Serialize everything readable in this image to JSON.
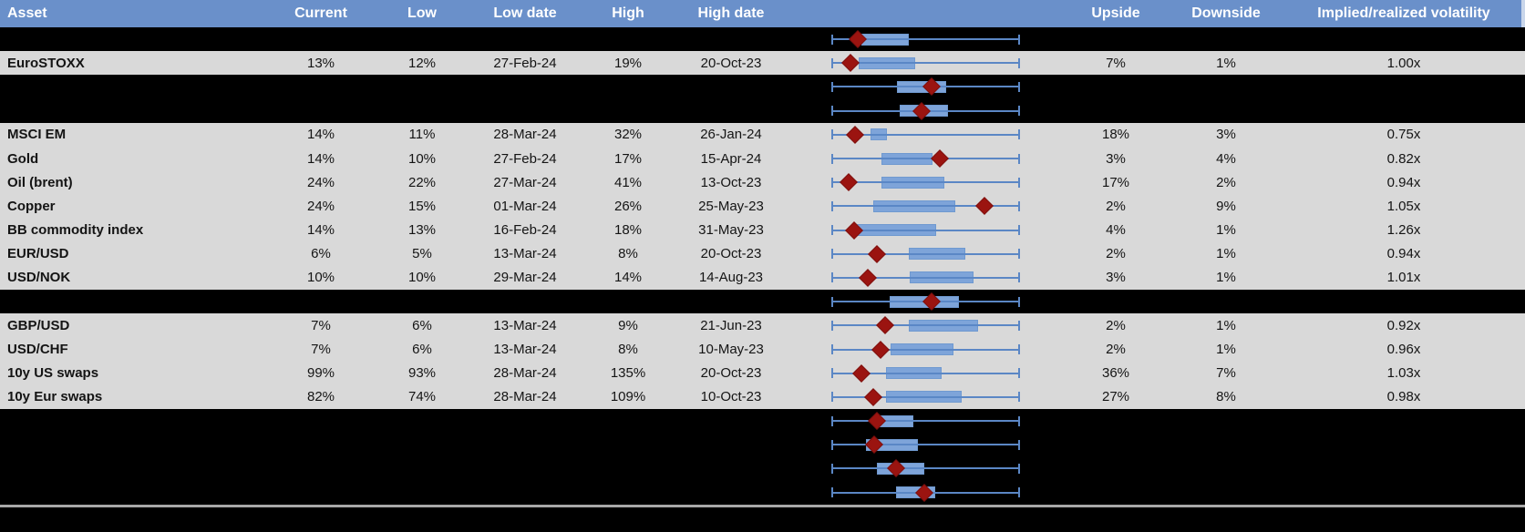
{
  "header": {
    "asset": "Asset",
    "current": "Current",
    "low": "Low",
    "low_date": "Low date",
    "high": "High",
    "high_date": "High date",
    "chart": "",
    "upside": "Upside",
    "downside": "Downside",
    "implied": "Implied/realized volatility"
  },
  "colors": {
    "header_bg": "#6a90ca",
    "header_text": "#ffffff",
    "row_bg": "#d9d9d9",
    "spacer_bg": "#000000",
    "text": "#141414",
    "whisker": "#5b87c5",
    "box_fill": "#7ea4d9",
    "box_border": "#6f99d0",
    "marker_fill": "#9b1410",
    "marker_border": "#7e100d",
    "bottom_line": "#a8a8a8"
  },
  "chart_data": {
    "type": "boxplot",
    "note": "horizontal box-whisker per row; units are % of chart cell width",
    "whisker_lo": 17.4,
    "whisker_hi": 84.6
  },
  "rows": [
    {
      "type": "spacer",
      "box": {
        "q1": 27.9,
        "q3": 44.9,
        "m": 26.6
      }
    },
    {
      "type": "data",
      "asset": "EuroSTOXX",
      "current": "13%",
      "low": "12%",
      "low_date": "27-Feb-24",
      "high": "19%",
      "high_date": "20-Oct-23",
      "upside": "7%",
      "downside": "1%",
      "ratio": "1.00x",
      "box": {
        "q1": 26.9,
        "q3": 47.2,
        "m": 23.9
      }
    },
    {
      "type": "spacer",
      "box": {
        "q1": 40.7,
        "q3": 58.4,
        "m": 53.1
      }
    },
    {
      "type": "spacer",
      "box": {
        "q1": 41.6,
        "q3": 59.0,
        "m": 49.5
      }
    },
    {
      "type": "data",
      "asset": "MSCI EM",
      "current": "14%",
      "low": "11%",
      "low_date": "28-Mar-24",
      "high": "32%",
      "high_date": "26-Jan-24",
      "upside": "18%",
      "downside": "3%",
      "ratio": "0.75x",
      "box": {
        "q1": 31.1,
        "q3": 37.0,
        "m": 25.6
      }
    },
    {
      "type": "data",
      "asset": "Gold",
      "current": "14%",
      "low": "10%",
      "low_date": "27-Feb-24",
      "high": "17%",
      "high_date": "15-Apr-24",
      "upside": "3%",
      "downside": "4%",
      "ratio": "0.82x",
      "box": {
        "q1": 35.1,
        "q3": 53.4,
        "m": 56.1
      }
    },
    {
      "type": "data",
      "asset": "Oil (brent)",
      "current": "24%",
      "low": "22%",
      "low_date": "27-Mar-24",
      "high": "41%",
      "high_date": "13-Oct-23",
      "upside": "17%",
      "downside": "2%",
      "ratio": "0.94x",
      "box": {
        "q1": 35.1,
        "q3": 57.7,
        "m": 23.3
      }
    },
    {
      "type": "data",
      "asset": "Copper",
      "current": "24%",
      "low": "15%",
      "low_date": "01-Mar-24",
      "high": "26%",
      "high_date": "25-May-23",
      "upside": "2%",
      "downside": "9%",
      "ratio": "1.05x",
      "box": {
        "q1": 32.1,
        "q3": 61.6,
        "m": 72.1
      }
    },
    {
      "type": "data",
      "asset": "BB commodity index",
      "current": "14%",
      "low": "13%",
      "low_date": "16-Feb-24",
      "high": "18%",
      "high_date": "31-May-23",
      "upside": "4%",
      "downside": "1%",
      "ratio": "1.26x",
      "box": {
        "q1": 25.6,
        "q3": 54.8,
        "m": 25.2
      }
    },
    {
      "type": "data",
      "asset": "EUR/USD",
      "current": "6%",
      "low": "5%",
      "low_date": "13-Mar-24",
      "high": "8%",
      "high_date": "20-Oct-23",
      "upside": "2%",
      "downside": "1%",
      "ratio": "0.94x",
      "box": {
        "q1": 44.9,
        "q3": 65.2,
        "m": 33.4
      }
    },
    {
      "type": "data",
      "asset": "USD/NOK",
      "current": "10%",
      "low": "10%",
      "low_date": "29-Mar-24",
      "high": "14%",
      "high_date": "14-Aug-23",
      "upside": "3%",
      "downside": "1%",
      "ratio": "1.01x",
      "box": {
        "q1": 45.2,
        "q3": 68.2,
        "m": 30.2
      }
    },
    {
      "type": "spacer",
      "box": {
        "q1": 38.0,
        "q3": 63.0,
        "m": 53.1
      }
    },
    {
      "type": "data",
      "asset": "GBP/USD",
      "current": "7%",
      "low": "6%",
      "low_date": "13-Mar-24",
      "high": "9%",
      "high_date": "21-Jun-23",
      "upside": "2%",
      "downside": "1%",
      "ratio": "0.92x",
      "box": {
        "q1": 44.9,
        "q3": 69.8,
        "m": 36.4
      }
    },
    {
      "type": "data",
      "asset": "USD/CHF",
      "current": "7%",
      "low": "6%",
      "low_date": "13-Mar-24",
      "high": "8%",
      "high_date": "10-May-23",
      "upside": "2%",
      "downside": "1%",
      "ratio": "0.96x",
      "box": {
        "q1": 38.4,
        "q3": 61.0,
        "m": 34.8
      }
    },
    {
      "type": "data",
      "asset": "10y US swaps",
      "current": "99%",
      "low": "93%",
      "low_date": "28-Mar-24",
      "high": "135%",
      "high_date": "20-Oct-23",
      "upside": "36%",
      "downside": "7%",
      "ratio": "1.03x",
      "box": {
        "q1": 36.7,
        "q3": 56.7,
        "m": 27.9
      }
    },
    {
      "type": "data",
      "asset": "10y Eur swaps",
      "current": "82%",
      "low": "74%",
      "low_date": "28-Mar-24",
      "high": "109%",
      "high_date": "10-Oct-23",
      "upside": "27%",
      "downside": "8%",
      "ratio": "0.98x",
      "box": {
        "q1": 36.7,
        "q3": 63.9,
        "m": 32.1
      }
    },
    {
      "type": "spacer",
      "box": {
        "q1": 33.8,
        "q3": 46.6,
        "m": 33.4
      }
    },
    {
      "type": "spacer",
      "box": {
        "q1": 29.5,
        "q3": 48.2,
        "m": 32.5
      }
    },
    {
      "type": "spacer",
      "box": {
        "q1": 33.4,
        "q3": 50.5,
        "m": 40.3
      }
    },
    {
      "type": "spacer",
      "box": {
        "q1": 40.3,
        "q3": 54.4,
        "m": 50.5
      }
    }
  ]
}
